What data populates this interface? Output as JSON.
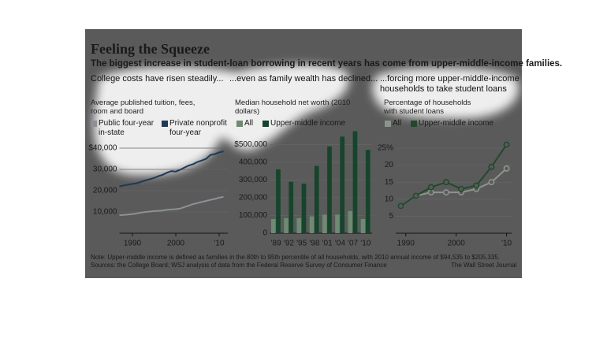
{
  "title": "Feeling the Squeeze",
  "subtitle": "The biggest increase in student-loan borrowing in recent years has come from upper-middle-income families.",
  "note": "Note: Upper-middle income is defined as families in the 80th to 95th percentile of all households, with 2010 annual income of $94,535 to $205,335.",
  "sources": "Sources: the College Board; WSJ analysis of data from the Federal Reserve Survey of Consumer Finance",
  "credit": "The Wall Street Journal",
  "chart_data": [
    {
      "type": "line",
      "heading": "College costs have risen steadily...",
      "subtitle": "Average published tuition, fees, room and board",
      "x": [
        1987,
        1988,
        1989,
        1990,
        1991,
        1992,
        1993,
        1994,
        1995,
        1996,
        1997,
        1998,
        1999,
        2000,
        2001,
        2002,
        2003,
        2004,
        2005,
        2006,
        2007,
        2008,
        2009,
        2010,
        2011
      ],
      "series": [
        {
          "name": "Public four-year in-state",
          "color": "#8c9196",
          "values": [
            8500,
            8600,
            8800,
            9000,
            9300,
            9700,
            10000,
            10200,
            10400,
            10500,
            10700,
            11000,
            11200,
            11300,
            11600,
            12300,
            13000,
            13700,
            14200,
            14700,
            15200,
            15700,
            16100,
            16700,
            17100
          ]
        },
        {
          "name": "Private nonprofit four-year",
          "color": "#1d3a57",
          "values": [
            22000,
            22500,
            22800,
            23200,
            23500,
            24200,
            24800,
            25400,
            26000,
            26800,
            27500,
            28500,
            29200,
            29000,
            29800,
            30900,
            31800,
            32500,
            33500,
            34200,
            35000,
            36800,
            37200,
            38000,
            38500
          ]
        }
      ],
      "xlim": [
        1987,
        2012
      ],
      "xticks": [
        1990,
        2000,
        {
          "value": 2010,
          "label": "'10"
        }
      ],
      "ylim": [
        0,
        42000
      ],
      "yticks": [
        {
          "value": 10000,
          "label": "10,000"
        },
        {
          "value": 20000,
          "label": "20,000"
        },
        {
          "value": 30000,
          "label": "30,000"
        },
        {
          "value": 40000,
          "label": "$40,000"
        }
      ],
      "grid": true
    },
    {
      "type": "bar",
      "heading": "...even as family wealth has declined...",
      "subtitle": "Median household net worth (2010 dollars)",
      "categories": [
        "'89",
        "'92",
        "'95",
        "'98",
        "'01",
        "'04",
        "'07",
        "'10"
      ],
      "series": [
        {
          "name": "All",
          "color": "#6f8a72",
          "values": [
            80000,
            85000,
            85000,
            95000,
            105000,
            105000,
            125000,
            80000
          ]
        },
        {
          "name": "Upper-middle income",
          "color": "#15452c",
          "values": [
            360000,
            290000,
            280000,
            380000,
            490000,
            545000,
            575000,
            470000
          ]
        }
      ],
      "ylim": [
        0,
        600000
      ],
      "yticks": [
        0,
        {
          "value": 100000,
          "label": "100,000"
        },
        {
          "value": 200000,
          "label": "200,000"
        },
        {
          "value": 300000,
          "label": "300,000"
        },
        {
          "value": 400000,
          "label": "400,000"
        },
        {
          "value": 500000,
          "label": "$500,000"
        }
      ],
      "grid": true
    },
    {
      "type": "line",
      "markers": true,
      "heading": "...forcing more upper-middle-income households to take student loans",
      "subtitle": "Percentage of households with student loans",
      "x": [
        1989,
        1992,
        1995,
        1998,
        2001,
        2004,
        2007,
        2010
      ],
      "series": [
        {
          "name": "All",
          "color": "#8c958c",
          "values": [
            8,
            11,
            12,
            12,
            12,
            13,
            15,
            19
          ]
        },
        {
          "name": "Upper-middle income",
          "color": "#1f4a2c",
          "values": [
            8,
            11,
            13.5,
            15,
            13,
            14,
            19.5,
            26
          ]
        }
      ],
      "xlim": [
        1988,
        2011
      ],
      "xticks": [
        1990,
        2000,
        {
          "value": 2010,
          "label": "'10"
        }
      ],
      "ylim": [
        0,
        28
      ],
      "yticks": [
        5,
        10,
        15,
        20,
        {
          "value": 25,
          "label": "25%"
        }
      ],
      "grid": true
    }
  ]
}
